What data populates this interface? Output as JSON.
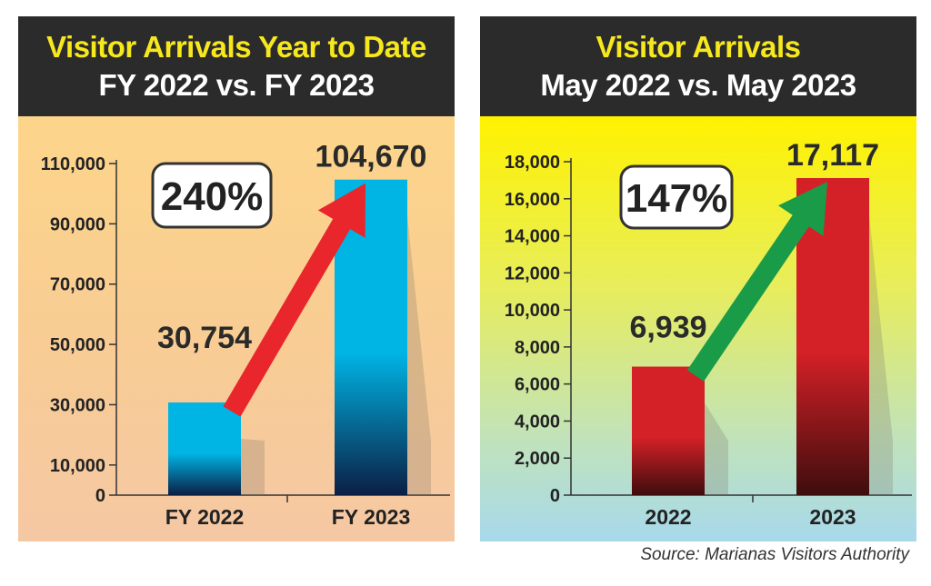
{
  "colors": {
    "header_bg": "#2b2b2b",
    "title_yellow": "#f7e81d",
    "bar_blue": "#00b4e4",
    "bar_blue_dark": "#0b1f44",
    "bar_red": "#d42027",
    "bar_red_dark": "#3e0d0d",
    "arrow_red": "#e8262c",
    "arrow_green": "#1a9b48"
  },
  "chart_data": [
    {
      "type": "bar",
      "title": "Visitor Arrivals Year to Date",
      "subtitle": "FY 2022 vs. FY 2023",
      "categories": [
        "FY 2022",
        "FY 2023"
      ],
      "values": [
        30754,
        104670
      ],
      "value_labels": [
        "30,754",
        "104,670"
      ],
      "percent_label": "240%",
      "ylim": [
        0,
        110000
      ],
      "yticks": [
        0,
        10000,
        30000,
        50000,
        70000,
        90000,
        110000
      ],
      "ytick_labels": [
        "0",
        "10,000",
        "30,000",
        "50,000",
        "70,000",
        "90,000",
        "110,000"
      ],
      "xlabel": "",
      "ylabel": "",
      "grid": false,
      "arrow_color": "#e8262c",
      "bar_color": "#00b4e4",
      "bar_color_dark": "#0b1f44"
    },
    {
      "type": "bar",
      "title": "Visitor Arrivals",
      "subtitle": "May 2022 vs. May 2023",
      "categories": [
        "2022",
        "2023"
      ],
      "values": [
        6939,
        17117
      ],
      "value_labels": [
        "6,939",
        "17,117"
      ],
      "percent_label": "147%",
      "ylim": [
        0,
        18000
      ],
      "yticks": [
        0,
        2000,
        4000,
        6000,
        8000,
        10000,
        12000,
        14000,
        16000,
        18000
      ],
      "ytick_labels": [
        "0",
        "2,000",
        "4,000",
        "6,000",
        "8,000",
        "10,000",
        "12,000",
        "14,000",
        "16,000",
        "18,000"
      ],
      "xlabel": "",
      "ylabel": "",
      "grid": false,
      "arrow_color": "#1a9b48",
      "bar_color": "#d42027",
      "bar_color_dark": "#3e0d0d"
    }
  ],
  "source": "Source: Marianas Visitors Authority"
}
